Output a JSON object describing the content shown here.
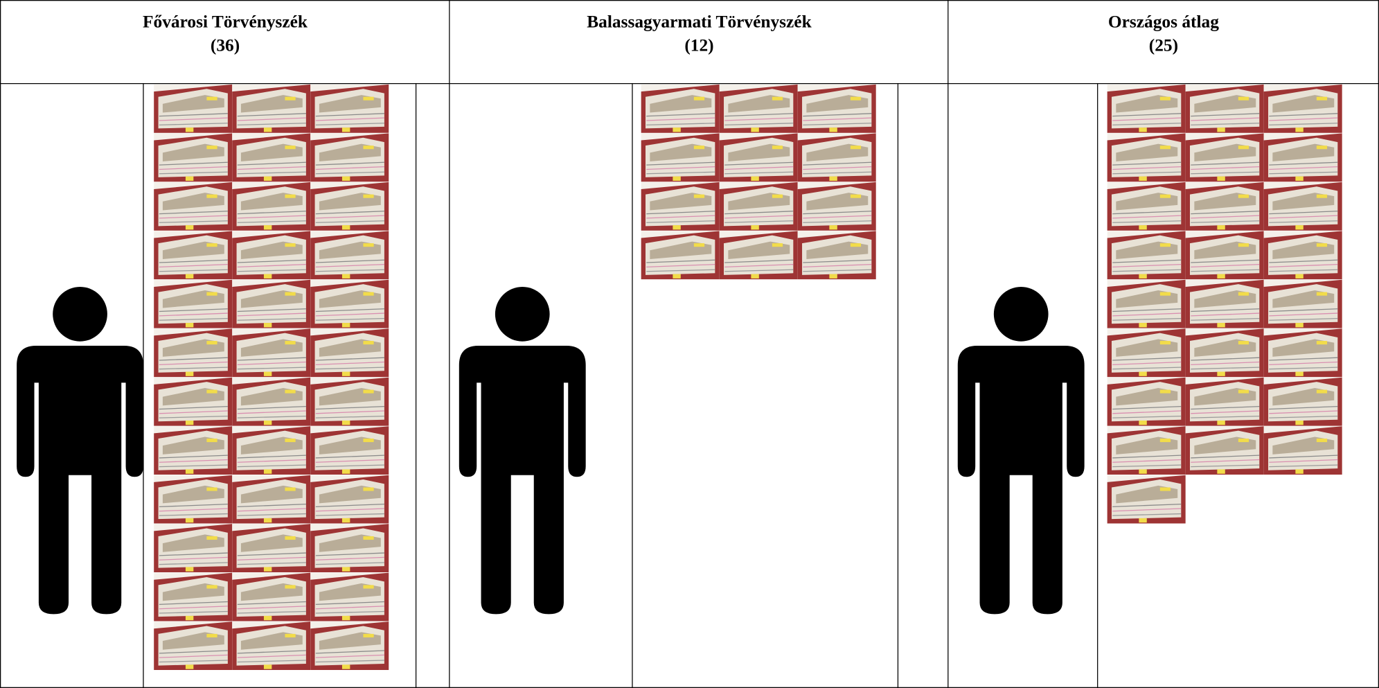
{
  "columns": [
    {
      "title": "Fővárosi Törvényszék",
      "count_label": "(36)",
      "count": 36
    },
    {
      "title": "Balassagyarmati Törvényszék",
      "count_label": "(12)",
      "count": 12
    },
    {
      "title": "Országos átlag",
      "count_label": "(25)",
      "count": 25
    }
  ]
}
